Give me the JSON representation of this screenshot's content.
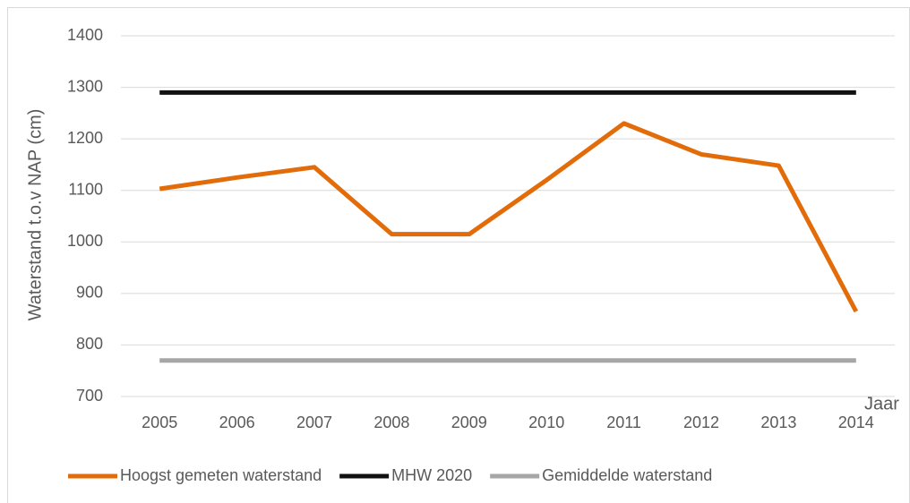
{
  "chart_data": {
    "type": "line",
    "y_label": "Waterstand t.o.v NAP (cm)",
    "x_label": "Jaar",
    "categories": [
      "2005",
      "2006",
      "2007",
      "2008",
      "2009",
      "2010",
      "2011",
      "2012",
      "2013",
      "2014"
    ],
    "series": [
      {
        "name": "Hoogst gemeten waterstand",
        "color": "#e36c0a",
        "values": [
          1103,
          1125,
          1145,
          1015,
          1015,
          1120,
          1230,
          1170,
          1148,
          865
        ]
      },
      {
        "name": "MHW 2020",
        "color": "#111111",
        "values": [
          1290,
          1290,
          1290,
          1290,
          1290,
          1290,
          1290,
          1290,
          1290,
          1290
        ]
      },
      {
        "name": "Gemiddelde waterstand",
        "color": "#a6a6a6",
        "values": [
          770,
          770,
          770,
          770,
          770,
          770,
          770,
          770,
          770,
          770
        ]
      }
    ],
    "ylim": [
      700,
      1400
    ],
    "yticks": [
      700,
      800,
      900,
      1000,
      1100,
      1200,
      1300,
      1400
    ],
    "grid": true,
    "legend": "bottom"
  }
}
